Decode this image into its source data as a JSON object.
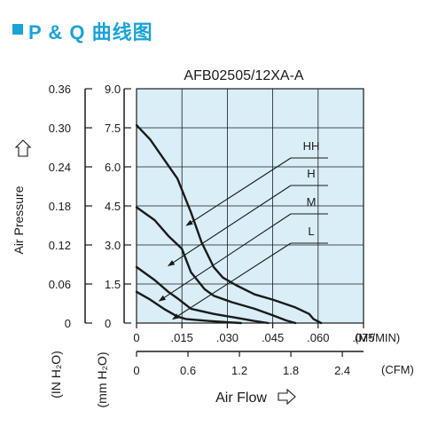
{
  "page_heading": "P & Q 曲线图",
  "chart_data": {
    "type": "line",
    "title": "AFB02505/12XA-A",
    "x_unit": "(M³/MIN)",
    "x2_unit": "(CFM)",
    "xlabel": "Air Flow",
    "ylabel": "Air Pressure",
    "y_unit_inh2o": "(IN H₂O)",
    "y_unit_mmh2o": "(mm H₂O)",
    "xlim": [
      0,
      0.075
    ],
    "ylim_mmh2o": [
      0,
      9.0
    ],
    "x_ticks": [
      "0",
      ".015",
      ".030",
      ".045",
      ".060",
      ".075"
    ],
    "x2_ticks": [
      "0",
      "0.6",
      "1.2",
      "1.8",
      "2.4"
    ],
    "x2_tick_values_m3min": [
      0,
      0.017,
      0.034,
      0.051,
      0.068
    ],
    "y_ticks_mmh2o": [
      "0",
      "1.5",
      "3.0",
      "4.5",
      "6.0",
      "7.5",
      "9.0"
    ],
    "y_ticks_inh2o": [
      "0",
      "0.06",
      "0.12",
      "0.18",
      "0.24",
      "0.30",
      "0.36"
    ],
    "grid": true,
    "background_color": "#d9eef7",
    "line_color": "#1a1a1a",
    "series": [
      {
        "name": "HH",
        "x": [
          0,
          0.0045,
          0.009,
          0.0135,
          0.018,
          0.0215,
          0.0255,
          0.0285,
          0.033,
          0.039,
          0.045,
          0.0525,
          0.057,
          0.0585,
          0.061
        ],
        "y": [
          7.6,
          7.05,
          6.3,
          5.55,
          4.25,
          3.1,
          2.15,
          1.75,
          1.45,
          1.1,
          0.9,
          0.6,
          0.35,
          0.15,
          0.0
        ]
      },
      {
        "name": "H",
        "x": [
          0,
          0.006,
          0.0105,
          0.015,
          0.018,
          0.0225,
          0.0255,
          0.0315,
          0.039,
          0.045,
          0.0495,
          0.0525
        ],
        "y": [
          4.45,
          3.95,
          3.35,
          2.85,
          1.95,
          1.3,
          1.05,
          0.8,
          0.55,
          0.3,
          0.1,
          0.0
        ]
      },
      {
        "name": "M",
        "x": [
          0,
          0.006,
          0.0105,
          0.0135,
          0.018,
          0.0255,
          0.033,
          0.039,
          0.0435
        ],
        "y": [
          2.15,
          1.65,
          1.2,
          0.95,
          0.55,
          0.35,
          0.2,
          0.08,
          0.0
        ]
      },
      {
        "name": "L",
        "x": [
          0,
          0.0045,
          0.009,
          0.0135,
          0.0165,
          0.024,
          0.03,
          0.0345
        ],
        "y": [
          1.2,
          0.9,
          0.55,
          0.25,
          0.15,
          0.08,
          0.03,
          0.0
        ]
      }
    ],
    "annotations": [
      {
        "label": "HH",
        "points_to": [
          0.0165,
          3.75
        ]
      },
      {
        "label": "H",
        "points_to": [
          0.0105,
          2.2
        ]
      },
      {
        "label": "M",
        "points_to": [
          0.0075,
          0.85
        ]
      },
      {
        "label": "L",
        "points_to": [
          0.012,
          0.15
        ]
      }
    ]
  }
}
